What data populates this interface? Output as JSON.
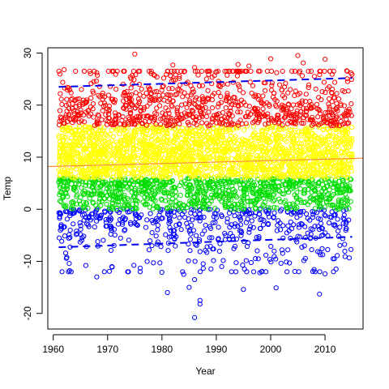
{
  "chart_data": {
    "type": "scatter",
    "title": "",
    "xlabel": "Year",
    "ylabel": "Temp",
    "xlim": [
      1959,
      2017
    ],
    "ylim": [
      -23,
      31
    ],
    "x_ticks": [
      1960,
      1970,
      1980,
      1990,
      2000,
      2010
    ],
    "y_ticks": [
      -20,
      -10,
      0,
      10,
      20,
      30
    ],
    "grid": false,
    "legend": "none",
    "marker": "open-circle",
    "point_color_scale": [
      {
        "min": -99,
        "max": 0,
        "color": "#0000ff"
      },
      {
        "min": 0,
        "max": 6,
        "color": "#00dd00"
      },
      {
        "min": 6,
        "max": 16,
        "color": "#ffff00"
      },
      {
        "min": 16,
        "max": 99,
        "color": "#ff0000"
      }
    ],
    "point_sets": [
      {
        "name_hint": "bulk",
        "x_range": [
          1961,
          2015
        ],
        "y_mean": 9,
        "y_sd": 8,
        "n": 4200
      },
      {
        "name_hint": "cold-extremes",
        "points": [
          [
            1986,
            -20.8
          ],
          [
            1987,
            -18.2
          ],
          [
            1987,
            -17.5
          ],
          [
            1985,
            -15.0
          ],
          [
            1995,
            -15.4
          ],
          [
            2001,
            -15.1
          ],
          [
            2009,
            -16.3
          ],
          [
            1981,
            -16.0
          ],
          [
            1980,
            -12.1
          ],
          [
            1968,
            -13.0
          ],
          [
            1963,
            -11.8
          ],
          [
            1998,
            -12.2
          ],
          [
            2003,
            -12.0
          ],
          [
            1984,
            -12.5
          ],
          [
            1986,
            -13.5
          ],
          [
            1976,
            -11.3
          ],
          [
            1991,
            -11.0
          ],
          [
            2008,
            -11.6
          ],
          [
            2010,
            -12.4
          ],
          [
            1966,
            -10.8
          ]
        ]
      },
      {
        "name_hint": "warm-extremes",
        "points": [
          [
            1975,
            29.8
          ],
          [
            2005,
            29.5
          ],
          [
            2000,
            28.9
          ],
          [
            1982,
            27.7
          ],
          [
            1994,
            27.8
          ],
          [
            2010,
            28.8
          ],
          [
            1962,
            26.8
          ],
          [
            1968,
            26.2
          ],
          [
            1986,
            27.2
          ],
          [
            2006,
            28.1
          ],
          [
            1996,
            27.5
          ],
          [
            2014,
            26.6
          ],
          [
            1990,
            26.4
          ],
          [
            1978,
            26.1
          ]
        ]
      }
    ],
    "reference_lines": [
      {
        "name": "trend",
        "style": "solid",
        "color": "#ff8c3a",
        "x": [
          1959,
          2017
        ],
        "y": [
          8.2,
          9.8
        ]
      },
      {
        "name": "upper-band",
        "style": "dashed",
        "color": "#0000ee",
        "x": [
          1961,
          2015
        ],
        "y": [
          23.5,
          25.2
        ]
      },
      {
        "name": "lower-band",
        "style": "dashed",
        "color": "#0000ee",
        "x": [
          1961,
          2015
        ],
        "y": [
          -7.3,
          -5.3
        ]
      }
    ]
  }
}
